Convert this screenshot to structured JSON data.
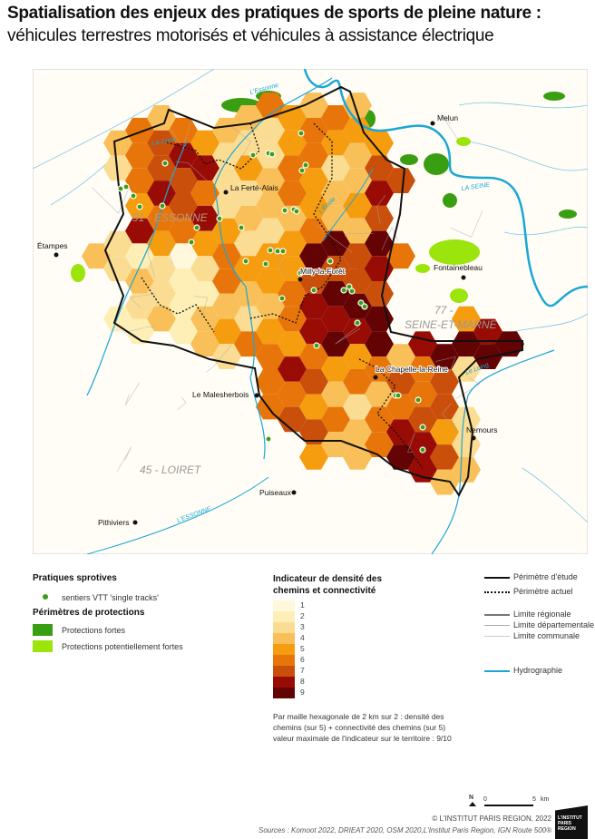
{
  "title": "Spatialisation des enjeux des pratiques de sports de pleine nature :",
  "subtitle": "véhicules terrestres motorisés et véhicules à assistance électrique",
  "map": {
    "towns": [
      {
        "name": "Melun"
      },
      {
        "name": "La Ferté-Alais"
      },
      {
        "name": "Étampes"
      },
      {
        "name": "Fontainebleau"
      },
      {
        "name": "Milly-la-Forêt"
      },
      {
        "name": "La Chapelle-la-Reine"
      },
      {
        "name": "Le Malesherbois"
      },
      {
        "name": "Nemours"
      },
      {
        "name": "Puiseaux"
      },
      {
        "name": "Pithiviers"
      }
    ],
    "rivers": [
      "L'Essonne",
      "La Juine",
      "L'École",
      "LA SEINE",
      "Le Loing",
      "L'ESSONNE"
    ],
    "departments": [
      "91 - ESSONNE",
      "77 -",
      "SEINE-ET-MARNE",
      "45 - LOIRET"
    ]
  },
  "legend": {
    "practices_title": "Pratiques sprotives",
    "vtt_label": "sentiers VTT 'single tracks'",
    "protections_title": "Périmètres de protections",
    "protections": [
      {
        "label": "Protections fortes",
        "color": "#3a9e12"
      },
      {
        "label": "Protections potentiellement fortes",
        "color": "#9be40c"
      }
    ],
    "indicator_title": "Indicateur de densité des chemins et connectivité",
    "classes": [
      {
        "value": "1",
        "color": "#fff8dc"
      },
      {
        "value": "2",
        "color": "#fdefb5"
      },
      {
        "value": "3",
        "color": "#fbdc93"
      },
      {
        "value": "4",
        "color": "#f9c05a"
      },
      {
        "value": "5",
        "color": "#f59c0f"
      },
      {
        "value": "6",
        "color": "#e8750a"
      },
      {
        "value": "7",
        "color": "#c94f0a"
      },
      {
        "value": "8",
        "color": "#990b05"
      },
      {
        "value": "9",
        "color": "#640303"
      }
    ],
    "lines": [
      {
        "label": "Périmètre d'étude"
      },
      {
        "label": "Périmètre actuel"
      },
      {
        "label": "Limite régionale"
      },
      {
        "label": "Limite départementale"
      },
      {
        "label": "Limite communale"
      },
      {
        "label": "Hydrographie"
      }
    ],
    "note": [
      "Par maille hexagonale de 2 km sur 2 : densité des",
      "chemins (sur 5) + connectivité des chemins (sur 5)",
      "valeur maximale de l'indicateur sur le territoire : 9/10"
    ]
  },
  "scale": {
    "north": "N",
    "zero": "0",
    "max": "5",
    "unit": "km"
  },
  "footer": {
    "copyright": "© L'INSTITUT PARIS REGION, 2022",
    "sources": "Sources : Komoot 2022, DRIEAT 2020, OSM 2020,L'Institut Paris Region, IGN Route 500®",
    "logo": "L'INSTITUT PARIS REGION"
  },
  "colors": {
    "river": "#1aa7d6",
    "vtt_dot": "#3a9e12",
    "background": "#fffdf6"
  }
}
